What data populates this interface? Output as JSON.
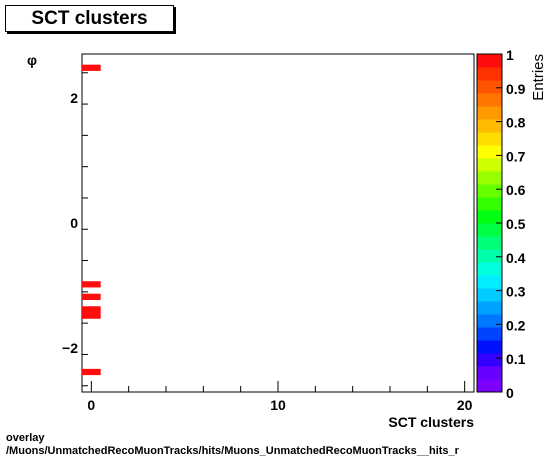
{
  "title": "SCT clusters",
  "footer_line1": "overlay",
  "footer_line2": "/Muons/UnmatchedRecoMuonTracks/hits/Muons_UnmatchedRecoMuonTracks__hits_r",
  "chart_data": {
    "type": "heatmap",
    "xlabel": "SCT clusters",
    "ylabel": "φ",
    "zlabel": "Entries",
    "xlim": [
      -0.5,
      20.5
    ],
    "ylim": [
      -2.7,
      2.7
    ],
    "x_ticks": [
      0,
      10,
      20
    ],
    "y_ticks": [
      -2,
      0,
      2
    ],
    "z_ticks": [
      "0",
      "0.1",
      "0.2",
      "0.3",
      "0.4",
      "0.5",
      "0.6",
      "0.7",
      "0.8",
      "0.9",
      "1"
    ],
    "zlim": [
      0,
      1
    ],
    "cells": [
      {
        "x": 0,
        "y_low": 2.43,
        "y_high": 2.53,
        "value": 1
      },
      {
        "x": 0,
        "y_low": -1.03,
        "y_high": -0.93,
        "value": 1
      },
      {
        "x": 0,
        "y_low": -1.23,
        "y_high": -1.13,
        "value": 1
      },
      {
        "x": 0,
        "y_low": -1.43,
        "y_high": -1.33,
        "value": 1
      },
      {
        "x": 0,
        "y_low": -1.53,
        "y_high": -1.43,
        "value": 1
      },
      {
        "x": 0,
        "y_low": -2.43,
        "y_high": -2.33,
        "value": 1
      }
    ],
    "colors": {
      "cell": "#ff0d0d",
      "palette": [
        "#7b00ff",
        "#6600ff",
        "#3300ff",
        "#0011ff",
        "#0044ff",
        "#0077ff",
        "#00a2ff",
        "#00ccff",
        "#00eeff",
        "#00ffdd",
        "#00ffaa",
        "#00ff77",
        "#00ff44",
        "#00ff11",
        "#33ff00",
        "#66ff00",
        "#99ff00",
        "#ccff00",
        "#ffff00",
        "#ffdd00",
        "#ffbb00",
        "#ff9900",
        "#ff7700",
        "#ff5500",
        "#ff3300",
        "#ff0d0d"
      ]
    }
  }
}
